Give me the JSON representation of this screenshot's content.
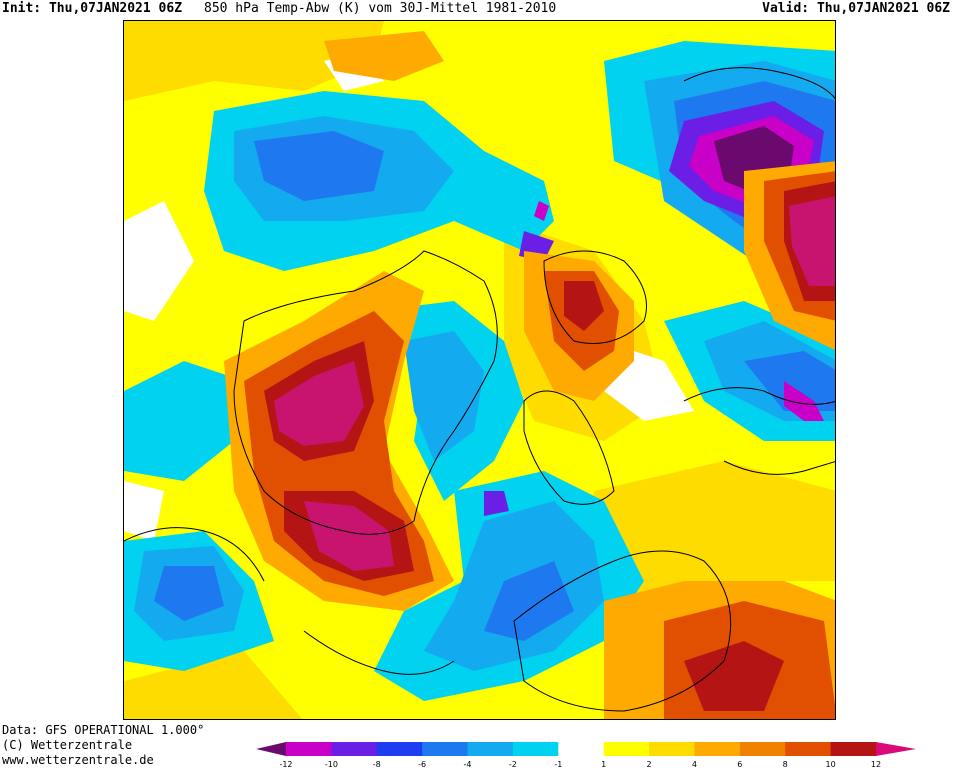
{
  "header": {
    "init_label": "Init:",
    "init_value": "Thu,07JAN2021 06Z",
    "title": "850 hPa Temp-Abw (K) vom 30J-Mittel 1981-2010",
    "valid_label": "Valid:",
    "valid_value": "Thu,07JAN2021 06Z"
  },
  "footer": {
    "data_source": "Data: GFS OPERATIONAL 1.000°",
    "copyright": "(C) Wetterzentrale",
    "website": "www.wetterzentrale.de"
  },
  "legend": {
    "unit": "K",
    "tick_labels": [
      "-12",
      "-10",
      "-8",
      "-6",
      "-4",
      "-2",
      "-1",
      "1",
      "2",
      "4",
      "6",
      "8",
      "10",
      "12"
    ],
    "bins": [
      {
        "color": "#6a0a6e"
      },
      {
        "color": "#c800c8"
      },
      {
        "color": "#6a1ee6"
      },
      {
        "color": "#1e3cf0"
      },
      {
        "color": "#1e78f0"
      },
      {
        "color": "#14aaf0"
      },
      {
        "color": "#00d2f0"
      },
      {
        "color": "#ffffff"
      },
      {
        "color": "#ffff00"
      },
      {
        "color": "#ffdc00"
      },
      {
        "color": "#ffaa00"
      },
      {
        "color": "#f08200"
      },
      {
        "color": "#e05000"
      },
      {
        "color": "#b41414"
      },
      {
        "color": "#dc0a78"
      }
    ]
  },
  "map": {
    "projection": "polar-stereographic-north",
    "field": "850 hPa temperature anomaly",
    "colors": {
      "deep_purple": "#6a0a6e",
      "magenta": "#c800c8",
      "violet": "#6a1ee6",
      "blue": "#1e3cf0",
      "mid_blue": "#1e78f0",
      "light_blue": "#14aaf0",
      "cyan": "#00d2f0",
      "white": "#ffffff",
      "yellow": "#ffff00",
      "gold": "#ffdc00",
      "orange": "#ffaa00",
      "dark_orange": "#f08200",
      "red_orange": "#e05000",
      "dark_red": "#b41414",
      "crimson": "#c8146e"
    }
  }
}
